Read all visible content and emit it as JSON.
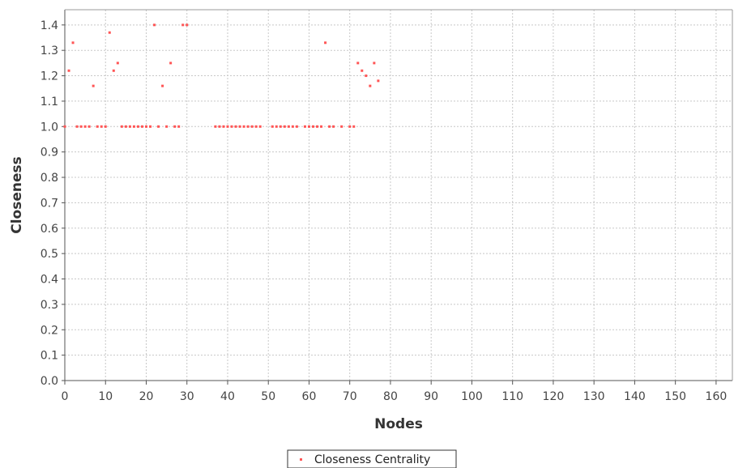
{
  "chart_data": {
    "type": "scatter",
    "xlabel": "Nodes",
    "ylabel": "Closeness",
    "xlim": [
      0,
      164
    ],
    "ylim": [
      0,
      1.46
    ],
    "xticks": [
      0,
      10,
      20,
      30,
      40,
      50,
      60,
      70,
      80,
      90,
      100,
      110,
      120,
      130,
      140,
      150,
      160
    ],
    "yticks": [
      0.0,
      0.1,
      0.2,
      0.3,
      0.4,
      0.5,
      0.6,
      0.7,
      0.8,
      0.9,
      1.0,
      1.1,
      1.2,
      1.3,
      1.4
    ],
    "ytick_labels": [
      "0.0",
      "0.1",
      "0.2",
      "0.3",
      "0.4",
      "0.5",
      "0.6",
      "0.7",
      "0.8",
      "0.9",
      "1.0",
      "1.1",
      "1.2",
      "1.3",
      "1.4"
    ],
    "grid": true,
    "legend_position": "bottom-center",
    "series": [
      {
        "name": "Closeness Centrality",
        "color": "#ff5555",
        "marker": "dot",
        "x": [
          0,
          1,
          2,
          3,
          4,
          5,
          6,
          7,
          8,
          9,
          10,
          11,
          12,
          13,
          14,
          15,
          16,
          17,
          18,
          19,
          20,
          21,
          22,
          23,
          24,
          25,
          26,
          27,
          28,
          29,
          30,
          37,
          38,
          39,
          40,
          41,
          42,
          43,
          44,
          45,
          46,
          47,
          48,
          51,
          52,
          53,
          54,
          55,
          56,
          57,
          59,
          60,
          61,
          62,
          63,
          64,
          65,
          66,
          68,
          70,
          71,
          72,
          73,
          74,
          75,
          76,
          77
        ],
        "y": [
          1.0,
          1.22,
          1.33,
          1.0,
          1.0,
          1.0,
          1.0,
          1.16,
          1.0,
          1.0,
          1.0,
          1.37,
          1.22,
          1.25,
          1.0,
          1.0,
          1.0,
          1.0,
          1.0,
          1.0,
          1.0,
          1.0,
          1.4,
          1.0,
          1.16,
          1.0,
          1.25,
          1.0,
          1.0,
          1.4,
          1.4,
          1.0,
          1.0,
          1.0,
          1.0,
          1.0,
          1.0,
          1.0,
          1.0,
          1.0,
          1.0,
          1.0,
          1.0,
          1.0,
          1.0,
          1.0,
          1.0,
          1.0,
          1.0,
          1.0,
          1.0,
          1.0,
          1.0,
          1.0,
          1.0,
          1.33,
          1.0,
          1.0,
          1.0,
          1.0,
          1.0,
          1.25,
          1.22,
          1.2,
          1.16,
          1.25,
          1.18
        ]
      }
    ]
  }
}
